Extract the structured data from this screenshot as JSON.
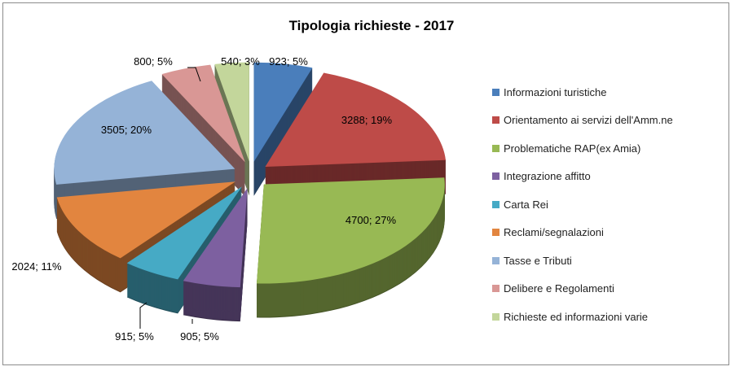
{
  "chart_data": {
    "type": "pie",
    "variant": "3d-exploded",
    "title": "Tipologia richieste - 2017",
    "legend_position": "right",
    "slices": [
      {
        "name": "Informazioni turistiche",
        "value": 923,
        "percent": "5%",
        "label": "923; 5%",
        "color": "#4a7ebb"
      },
      {
        "name": "Orientamento ai servizi dell'Amm.ne",
        "value": 3288,
        "percent": "19%",
        "label": "3288; 19%",
        "color": "#be4b48"
      },
      {
        "name": "Problematiche RAP(ex Amia)",
        "value": 4700,
        "percent": "27%",
        "label": "4700; 27%",
        "color": "#98b954"
      },
      {
        "name": "Integrazione affitto",
        "value": 905,
        "percent": "5%",
        "label": "905; 5%",
        "color": "#7d60a0"
      },
      {
        "name": "Carta Rei",
        "value": 915,
        "percent": "5%",
        "label": "915; 5%",
        "color": "#46aac5"
      },
      {
        "name": "Reclami/segnalazioni",
        "value": 2024,
        "percent": "11%",
        "label": "2024; 11%",
        "color": "#e2853f"
      },
      {
        "name": "Tasse e Tributi",
        "value": 3505,
        "percent": "20%",
        "label": "3505; 20%",
        "color": "#95b3d7"
      },
      {
        "name": "Delibere e Regolamenti",
        "value": 800,
        "percent": "5%",
        "label": "800; 5%",
        "color": "#d99795"
      },
      {
        "name": "Richieste ed informazioni varie",
        "value": 540,
        "percent": "3%",
        "label": "540; 3%",
        "color": "#c3d69b"
      }
    ]
  }
}
